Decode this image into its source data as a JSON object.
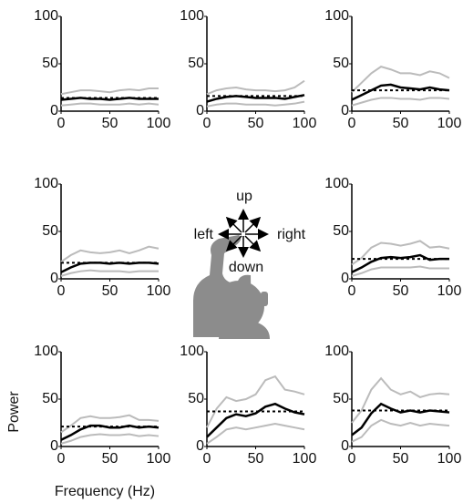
{
  "chart_data": [
    {
      "type": "line",
      "x": [
        0,
        10,
        20,
        30,
        40,
        50,
        60,
        70,
        80,
        90,
        100
      ],
      "xlim": [
        0,
        100
      ],
      "ylim": [
        0,
        100
      ],
      "xticks": [
        0,
        50,
        100
      ],
      "yticks": [
        0,
        50,
        100
      ],
      "reference": 14,
      "series": [
        {
          "color": "#bbbbbb",
          "values": [
            18,
            20,
            22,
            22,
            21,
            20,
            22,
            23,
            22,
            24,
            24
          ]
        },
        {
          "color": "#bbbbbb",
          "values": [
            6,
            7,
            8,
            8,
            7,
            7,
            7,
            8,
            7,
            8,
            7
          ]
        },
        {
          "color": "#000000",
          "values": [
            12,
            13,
            14,
            13,
            13,
            12,
            13,
            14,
            13,
            13,
            13
          ]
        }
      ]
    },
    {
      "type": "line",
      "x": [
        0,
        10,
        20,
        30,
        40,
        50,
        60,
        70,
        80,
        90,
        100
      ],
      "xlim": [
        0,
        100
      ],
      "ylim": [
        0,
        100
      ],
      "xticks": [
        0,
        50,
        100
      ],
      "yticks": [
        0,
        50,
        100
      ],
      "reference": 16,
      "series": [
        {
          "color": "#bbbbbb",
          "values": [
            18,
            22,
            24,
            25,
            23,
            22,
            22,
            21,
            22,
            25,
            32
          ]
        },
        {
          "color": "#bbbbbb",
          "values": [
            5,
            7,
            8,
            8,
            7,
            7,
            7,
            6,
            7,
            8,
            10
          ]
        },
        {
          "color": "#000000",
          "values": [
            10,
            13,
            15,
            16,
            15,
            14,
            14,
            14,
            13,
            15,
            17
          ]
        }
      ]
    },
    {
      "type": "line",
      "x": [
        0,
        10,
        20,
        30,
        40,
        50,
        60,
        70,
        80,
        90,
        100
      ],
      "xlim": [
        0,
        100
      ],
      "ylim": [
        0,
        100
      ],
      "xticks": [
        0,
        50,
        100
      ],
      "yticks": [
        0,
        50,
        100
      ],
      "reference": 22,
      "series": [
        {
          "color": "#bbbbbb",
          "values": [
            20,
            30,
            40,
            47,
            44,
            40,
            40,
            38,
            42,
            40,
            35
          ]
        },
        {
          "color": "#bbbbbb",
          "values": [
            6,
            9,
            12,
            14,
            14,
            13,
            13,
            12,
            14,
            14,
            13
          ]
        },
        {
          "color": "#000000",
          "values": [
            12,
            17,
            22,
            27,
            28,
            25,
            24,
            23,
            25,
            23,
            22
          ]
        }
      ]
    },
    {
      "type": "line",
      "x": [
        0,
        10,
        20,
        30,
        40,
        50,
        60,
        70,
        80,
        90,
        100
      ],
      "xlim": [
        0,
        100
      ],
      "ylim": [
        0,
        100
      ],
      "xticks": [
        0,
        50,
        100
      ],
      "yticks": [
        0,
        50,
        100
      ],
      "reference": 17,
      "series": [
        {
          "color": "#bbbbbb",
          "values": [
            18,
            25,
            30,
            28,
            27,
            28,
            30,
            27,
            30,
            34,
            32
          ]
        },
        {
          "color": "#bbbbbb",
          "values": [
            3,
            6,
            8,
            9,
            8,
            8,
            8,
            7,
            8,
            8,
            8
          ]
        },
        {
          "color": "#000000",
          "values": [
            7,
            12,
            16,
            17,
            17,
            16,
            17,
            16,
            17,
            17,
            16
          ]
        }
      ]
    },
    {
      "type": "line",
      "x": [
        0,
        10,
        20,
        30,
        40,
        50,
        60,
        70,
        80,
        90,
        100
      ],
      "xlim": [
        0,
        100
      ],
      "ylim": [
        0,
        100
      ],
      "xticks": [
        0,
        50,
        100
      ],
      "yticks": [
        0,
        50,
        100
      ],
      "reference": 21,
      "series": [
        {
          "color": "#bbbbbb",
          "values": [
            15,
            22,
            33,
            38,
            37,
            35,
            37,
            40,
            33,
            34,
            32
          ]
        },
        {
          "color": "#bbbbbb",
          "values": [
            3,
            6,
            10,
            12,
            12,
            12,
            12,
            13,
            11,
            11,
            11
          ]
        },
        {
          "color": "#000000",
          "values": [
            7,
            12,
            18,
            22,
            23,
            22,
            23,
            25,
            20,
            21,
            21
          ]
        }
      ]
    },
    {
      "type": "line",
      "x": [
        0,
        10,
        20,
        30,
        40,
        50,
        60,
        70,
        80,
        90,
        100
      ],
      "xlim": [
        0,
        100
      ],
      "ylim": [
        0,
        100
      ],
      "xticks": [
        0,
        50,
        100
      ],
      "yticks": [
        0,
        50,
        100
      ],
      "reference": 21,
      "xlabel": "Frequency (Hz)",
      "ylabel": "Power",
      "series": [
        {
          "color": "#bbbbbb",
          "values": [
            15,
            22,
            30,
            32,
            30,
            30,
            31,
            33,
            28,
            28,
            27
          ]
        },
        {
          "color": "#bbbbbb",
          "values": [
            3,
            6,
            10,
            12,
            13,
            12,
            12,
            13,
            11,
            12,
            11
          ]
        },
        {
          "color": "#000000",
          "values": [
            7,
            12,
            18,
            22,
            22,
            20,
            20,
            22,
            20,
            21,
            20
          ]
        }
      ]
    },
    {
      "type": "line",
      "x": [
        0,
        10,
        20,
        30,
        40,
        50,
        60,
        70,
        80,
        90,
        100
      ],
      "xlim": [
        0,
        100
      ],
      "ylim": [
        0,
        100
      ],
      "xticks": [
        0,
        50,
        100
      ],
      "yticks": [
        0,
        50,
        100
      ],
      "reference": 37,
      "series": [
        {
          "color": "#bbbbbb",
          "values": [
            20,
            40,
            52,
            48,
            50,
            55,
            70,
            74,
            60,
            58,
            55
          ]
        },
        {
          "color": "#bbbbbb",
          "values": [
            3,
            10,
            18,
            20,
            18,
            20,
            22,
            24,
            22,
            20,
            18
          ]
        },
        {
          "color": "#000000",
          "values": [
            10,
            20,
            30,
            34,
            32,
            35,
            42,
            45,
            40,
            36,
            34
          ]
        }
      ]
    },
    {
      "type": "line",
      "x": [
        0,
        10,
        20,
        30,
        40,
        50,
        60,
        70,
        80,
        90,
        100
      ],
      "xlim": [
        0,
        100
      ],
      "ylim": [
        0,
        100
      ],
      "xticks": [
        0,
        50,
        100
      ],
      "yticks": [
        0,
        50,
        100
      ],
      "reference": 38,
      "series": [
        {
          "color": "#bbbbbb",
          "values": [
            25,
            38,
            60,
            72,
            60,
            55,
            58,
            52,
            55,
            56,
            55
          ]
        },
        {
          "color": "#bbbbbb",
          "values": [
            5,
            10,
            22,
            28,
            24,
            22,
            25,
            22,
            24,
            23,
            22
          ]
        },
        {
          "color": "#000000",
          "values": [
            12,
            20,
            35,
            45,
            40,
            36,
            38,
            36,
            38,
            37,
            36
          ]
        }
      ]
    }
  ],
  "diagram": {
    "up": "up",
    "down": "down",
    "left": "left",
    "right": "right"
  }
}
